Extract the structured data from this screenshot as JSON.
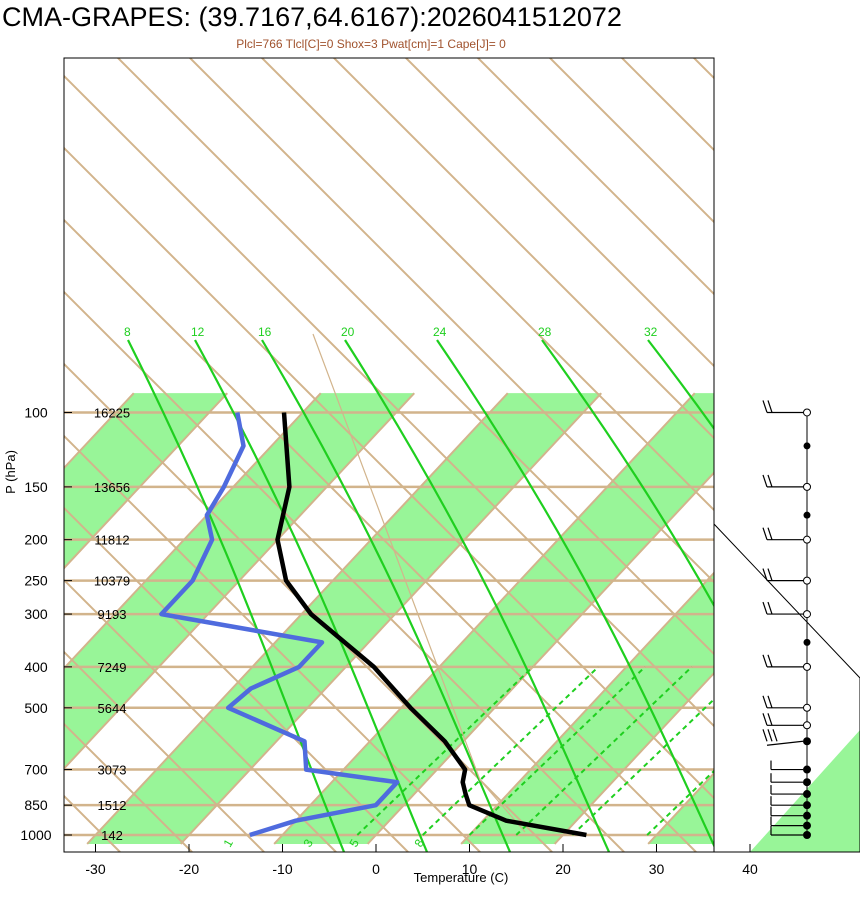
{
  "chart_data": {
    "type": "line",
    "title": "CMA-GRAPES: (39.7167,64.6167):2026041512072",
    "subtitle": "Plcl=766 Tlcl[C]=0 Shox=3 Pwat[cm]=1 Cape[J]= 0",
    "xlabel": "Temperature (C)",
    "ylabel": "P (hPa)",
    "x_ticks": [
      -30,
      -20,
      -10,
      0,
      10,
      20,
      30,
      40
    ],
    "y_ticks": [
      100,
      150,
      200,
      250,
      300,
      400,
      500,
      700,
      850,
      1000
    ],
    "heights": [
      "16225",
      "13656",
      "11812",
      "10379",
      "9193",
      "7249",
      "5644",
      "3073",
      "1512",
      "142"
    ],
    "mixing_ratio_labels": [
      "1",
      "3",
      "5",
      "8"
    ],
    "moist_adiabat_labels": [
      "8",
      "12",
      "16",
      "20",
      "24",
      "28",
      "32"
    ],
    "temperature_series": {
      "name": "Temperature",
      "color": "#000000",
      "points": [
        [
          1000,
          22.5
        ],
        [
          925,
          12.5
        ],
        [
          850,
          7
        ],
        [
          800,
          5.5
        ],
        [
          750,
          4
        ],
        [
          700,
          3
        ],
        [
          600,
          -2
        ],
        [
          500,
          -9
        ],
        [
          400,
          -17
        ],
        [
          300,
          -29
        ],
        [
          250,
          -35
        ],
        [
          200,
          -40
        ],
        [
          150,
          -44
        ],
        [
          100,
          -52
        ]
      ]
    },
    "dewpoint_series": {
      "name": "Dewpoint",
      "color": "#4f6bde",
      "points": [
        [
          1000,
          -13.5
        ],
        [
          925,
          -10
        ],
        [
          850,
          -3
        ],
        [
          800,
          -3
        ],
        [
          750,
          -3
        ],
        [
          700,
          -14
        ],
        [
          600,
          -17
        ],
        [
          500,
          -28.5
        ],
        [
          450,
          -28
        ],
        [
          400,
          -25
        ],
        [
          350,
          -25
        ],
        [
          300,
          -45
        ],
        [
          250,
          -45
        ],
        [
          200,
          -47
        ],
        [
          175,
          -50
        ],
        [
          150,
          -51
        ],
        [
          120,
          -53
        ],
        [
          100,
          -57
        ]
      ]
    },
    "wind_barbs": {
      "pressures": [
        100,
        150,
        200,
        250,
        300,
        400,
        500,
        550,
        600,
        700,
        750,
        800,
        850,
        900,
        950,
        1000
      ],
      "shafts": [
        2,
        2,
        2,
        2,
        2,
        2,
        2,
        2,
        3,
        0,
        0,
        0,
        0,
        0,
        0,
        0
      ]
    }
  }
}
